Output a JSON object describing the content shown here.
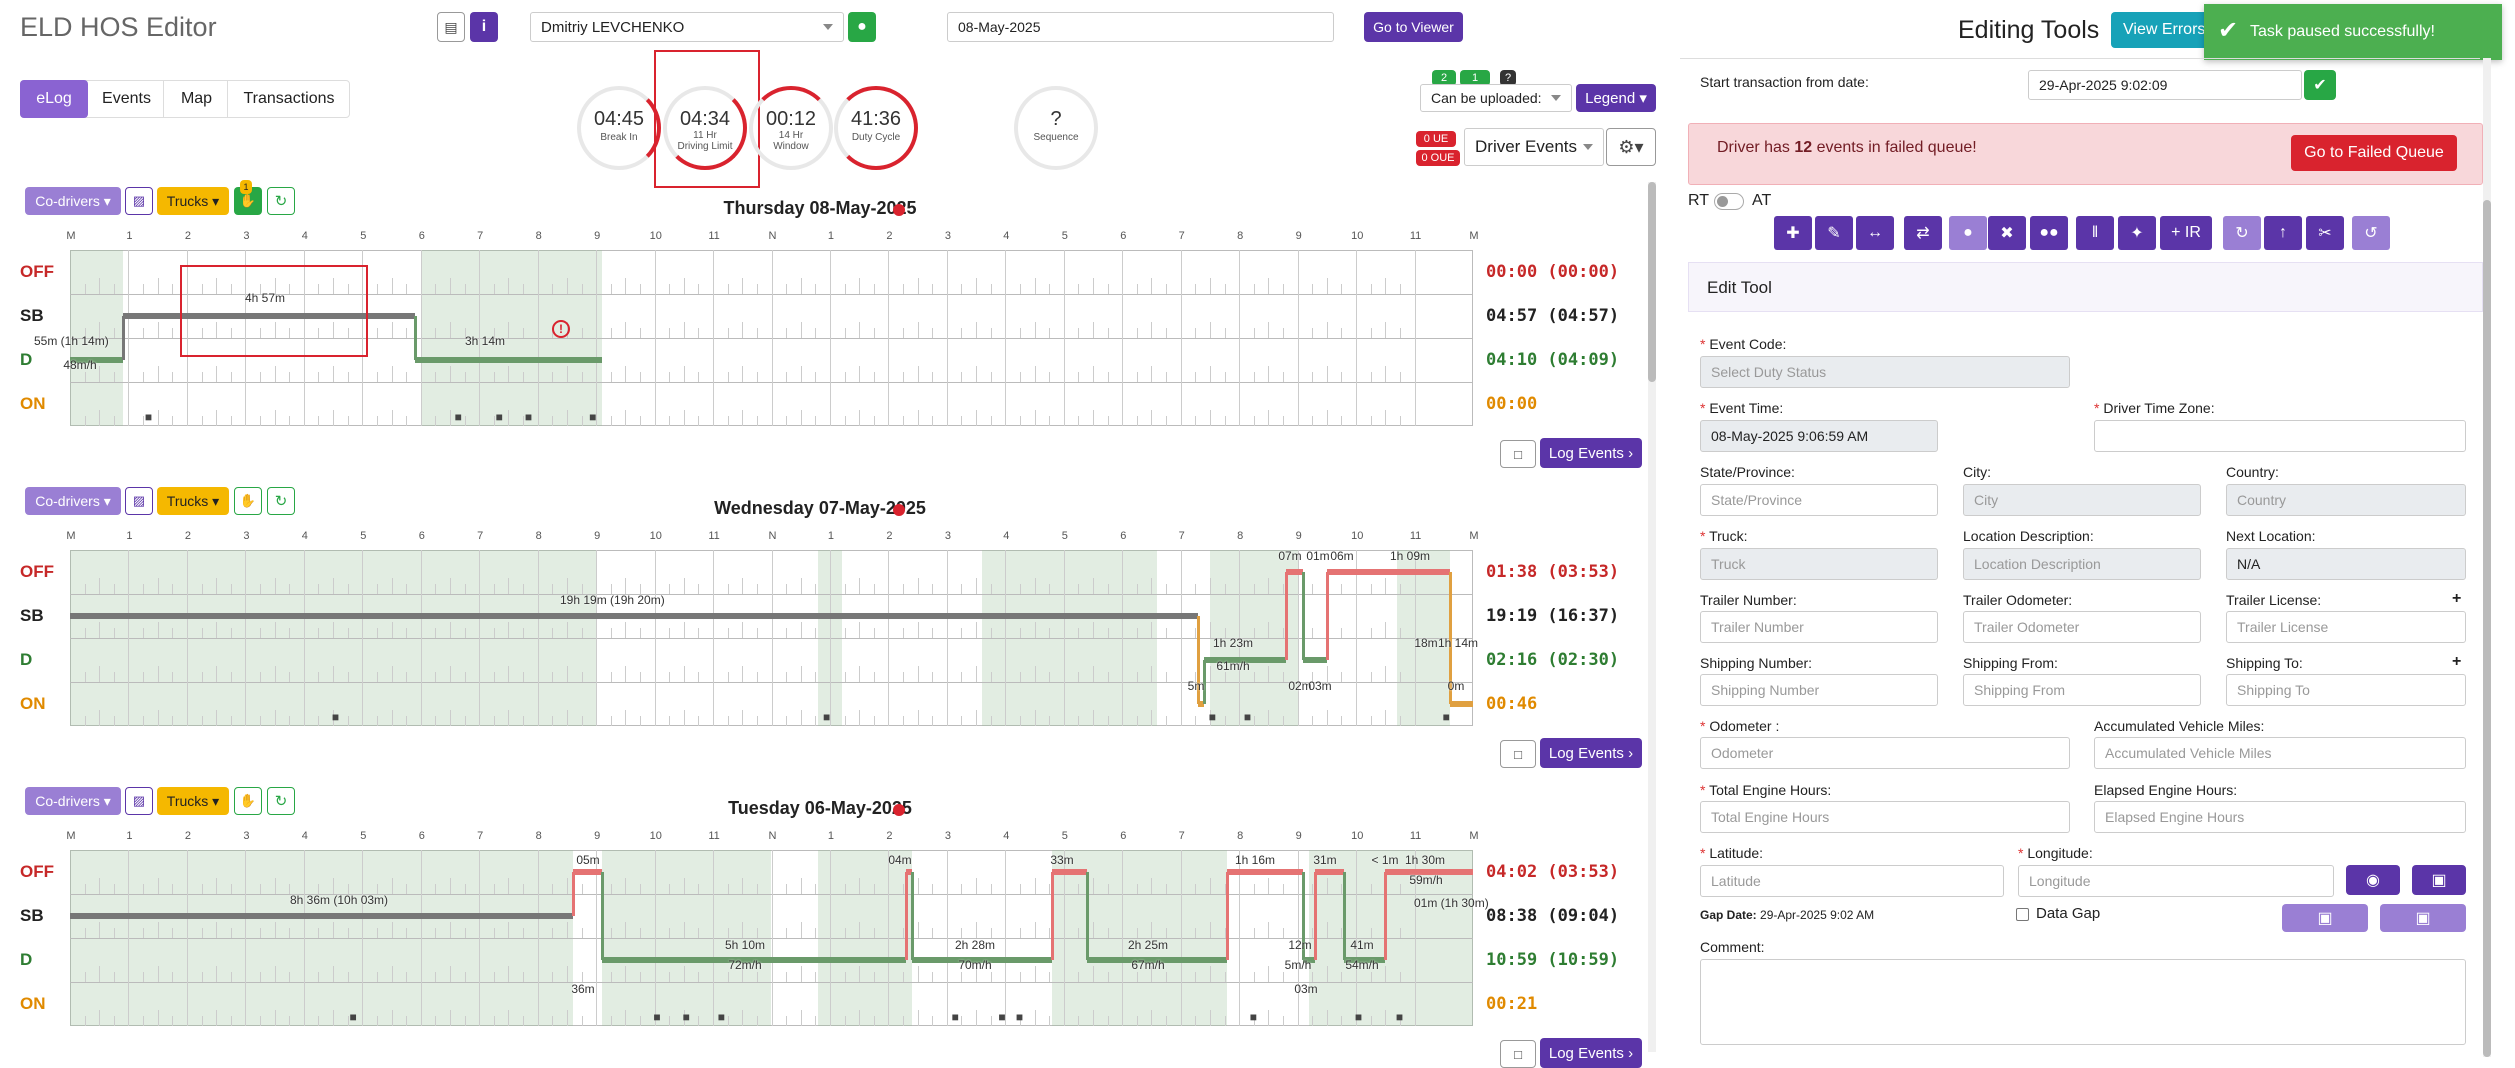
{
  "app": {
    "title": "ELD HOS Editor",
    "driver": "Dmitriy LEVCHENKO",
    "date": "08-May-2025",
    "go_viewer": "Go to Viewer"
  },
  "tabs": [
    "eLog",
    "Events",
    "Map",
    "Transactions"
  ],
  "gauges": [
    {
      "value": "04:45",
      "l1": "Break In",
      "l2": ""
    },
    {
      "value": "04:34",
      "l1": "11 Hr",
      "l2": "Driving Limit"
    },
    {
      "value": "00:12",
      "l1": "14 Hr",
      "l2": "Window"
    },
    {
      "value": "41:36",
      "l1": "Duty Cycle",
      "l2": ""
    },
    {
      "value": "?",
      "l1": "Sequence",
      "l2": ""
    }
  ],
  "upload": {
    "badge1": "2",
    "badge2": "1",
    "badge3": "?",
    "select": "Can be uploaded:",
    "legend": "Legend",
    "ue": "0 UE",
    "oue": "0 OUE",
    "driver_events": "Driver Events"
  },
  "hours": [
    "M",
    "1",
    "2",
    "3",
    "4",
    "5",
    "6",
    "7",
    "8",
    "9",
    "10",
    "11",
    "N",
    "1",
    "2",
    "3",
    "4",
    "5",
    "6",
    "7",
    "8",
    "9",
    "10",
    "11",
    "M"
  ],
  "rows": [
    "OFF",
    "SB",
    "D",
    "ON"
  ],
  "log_events": "Log Events",
  "co_drivers": "Co-drivers",
  "trucks": "Trucks",
  "days": [
    {
      "title": "Thursday 08-May-2025",
      "totals": [
        "00:00 (00:00)",
        "04:57 (04:57)",
        "04:10 (04:09)",
        "00:00"
      ],
      "labels": [
        {
          "t": "4h 57m"
        },
        {
          "t": "55m (1h 14m)"
        },
        {
          "t": "48m/h"
        },
        {
          "t": "3h 14m"
        }
      ]
    },
    {
      "title": "Wednesday 07-May-2025",
      "totals": [
        "01:38 (03:53)",
        "19:19 (16:37)",
        "02:16 (02:30)",
        "00:46"
      ],
      "labels": [
        {
          "t": "19h 19m (19h 20m)"
        },
        {
          "t": "1h 23m"
        },
        {
          "t": "61m/h"
        },
        {
          "t": "07m"
        },
        {
          "t": "01m"
        },
        {
          "t": "06m"
        },
        {
          "t": "1h 09m"
        },
        {
          "t": "18m"
        },
        {
          "t": "1h 14m"
        },
        {
          "t": "5m"
        },
        {
          "t": "02m"
        },
        {
          "t": "03m"
        },
        {
          "t": "0m"
        }
      ]
    },
    {
      "title": "Tuesday 06-May-2025",
      "totals": [
        "04:02 (03:53)",
        "08:38 (09:04)",
        "10:59 (10:59)",
        "00:21"
      ],
      "labels": [
        {
          "t": "8h 36m (10h 03m)"
        },
        {
          "t": "05m"
        },
        {
          "t": "5h 10m"
        },
        {
          "t": "72m/h"
        },
        {
          "t": "04m"
        },
        {
          "t": "2h 28m"
        },
        {
          "t": "70m/h"
        },
        {
          "t": "33m"
        },
        {
          "t": "2h 25m"
        },
        {
          "t": "67m/h"
        },
        {
          "t": "1h 16m"
        },
        {
          "t": "31m"
        },
        {
          "t": "< 1m"
        },
        {
          "t": "1h 30m"
        },
        {
          "t": "59m/h"
        },
        {
          "t": "01m (1h 30m)"
        },
        {
          "t": "12m"
        },
        {
          "t": "5m/h"
        },
        {
          "t": "41m"
        },
        {
          "t": "54m/h"
        },
        {
          "t": "03m"
        },
        {
          "t": "36m"
        }
      ]
    }
  ],
  "right": {
    "title": "Editing Tools",
    "view_errors": "View Errors",
    "toast": "Task paused successfully!",
    "start_label": "Start transaction from date:",
    "start_value": "29-Apr-2025 9:02:09",
    "alert_pre": "Driver has ",
    "alert_num": "12",
    "alert_post": " events in failed queue!",
    "failed_btn": "Go to Failed Queue",
    "rt": "RT",
    "at": "AT",
    "edit_tool": "Edit Tool",
    "ir": "+ IR",
    "f_event_code": "Event Code:",
    "p_event_code": "Select Duty Status",
    "f_event_time": "Event Time:",
    "v_event_time": "08-May-2025 9:06:59 AM",
    "f_tz": "Driver Time Zone:",
    "f_state": "State/Province:",
    "p_state": "State/Province",
    "f_city": "City:",
    "p_city": "City",
    "f_country": "Country:",
    "p_country": "Country",
    "f_truck": "Truck:",
    "p_truck": "Truck",
    "f_locdesc": "Location Description:",
    "p_locdesc": "Location Description",
    "f_nextloc": "Next Location:",
    "v_nextloc": "N/A",
    "f_trailer_num": "Trailer Number:",
    "p_trailer_num": "Trailer Number",
    "f_trailer_odo": "Trailer Odometer:",
    "p_trailer_odo": "Trailer Odometer",
    "f_trailer_lic": "Trailer License:",
    "p_trailer_lic": "Trailer License",
    "f_ship_num": "Shipping Number:",
    "p_ship_num": "Shipping Number",
    "f_ship_from": "Shipping From:",
    "p_ship_from": "Shipping From",
    "f_ship_to": "Shipping To:",
    "p_ship_to": "Shipping To",
    "f_odo": "Odometer :",
    "p_odo": "Odometer",
    "f_acc": "Accumulated Vehicle Miles:",
    "p_acc": "Accumulated Vehicle Miles",
    "f_teh": "Total Engine Hours:",
    "p_teh": "Total Engine Hours",
    "f_eeh": "Elapsed Engine Hours:",
    "p_eeh": "Elapsed Engine Hours",
    "f_lat": "Latitude:",
    "p_lat": "Latitude",
    "f_lon": "Longitude:",
    "p_lon": "Longitude",
    "gap_label": "Gap Date:",
    "gap_value": "29-Apr-2025 9:02 AM",
    "data_gap": "Data Gap",
    "comment": "Comment:"
  },
  "colors": {
    "purple": "#5b35a8",
    "yellow": "#f5b800",
    "green": "#28a745",
    "red": "#d9232e",
    "off": "#c62828",
    "sb": "#222222",
    "d": "#2e7d32",
    "on": "#e08a00"
  }
}
